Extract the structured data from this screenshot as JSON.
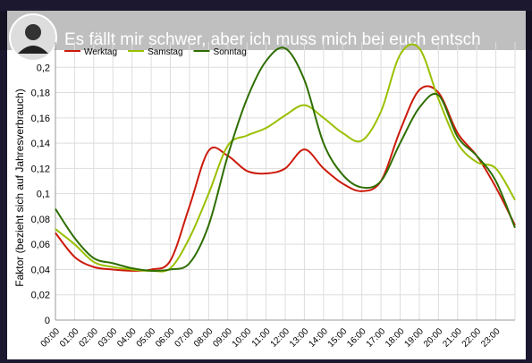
{
  "video_title": "Es fällt mir schwer, aber ich muss mich bei euch entsch",
  "chart_data": {
    "type": "line",
    "ylabel": "Faktor (bezieht sich auf Jahresverbrauch)",
    "categories": [
      "00:00",
      "01:00",
      "02:00",
      "03:00",
      "04:00",
      "05:00",
      "06:00",
      "07:00",
      "08:00",
      "09:00",
      "10:00",
      "11:00",
      "12:00",
      "13:00",
      "14:00",
      "15:00",
      "16:00",
      "17:00",
      "18:00",
      "19:00",
      "20:00",
      "21:00",
      "22:00",
      "23:00",
      null
    ],
    "series": [
      {
        "name": "Werktag",
        "color": "#cc1a0a",
        "values": [
          0.069,
          0.05,
          0.042,
          0.04,
          0.039,
          0.04,
          0.047,
          0.09,
          0.134,
          0.13,
          0.118,
          0.116,
          0.12,
          0.135,
          0.12,
          0.108,
          0.102,
          0.11,
          0.15,
          0.182,
          0.18,
          0.148,
          0.13,
          0.105,
          0.075
        ]
      },
      {
        "name": "Samstag",
        "color": "#9ac000",
        "values": [
          0.072,
          0.06,
          0.046,
          0.042,
          0.04,
          0.039,
          0.041,
          0.065,
          0.1,
          0.138,
          0.146,
          0.152,
          0.162,
          0.17,
          0.16,
          0.148,
          0.142,
          0.165,
          0.21,
          0.215,
          0.175,
          0.14,
          0.125,
          0.12,
          0.095
        ]
      },
      {
        "name": "Sonntag",
        "color": "#2e6e00",
        "values": [
          0.088,
          0.065,
          0.049,
          0.045,
          0.041,
          0.039,
          0.04,
          0.045,
          0.075,
          0.13,
          0.175,
          0.205,
          0.215,
          0.19,
          0.14,
          0.115,
          0.105,
          0.11,
          0.14,
          0.168,
          0.178,
          0.145,
          0.13,
          0.11,
          0.073
        ]
      }
    ],
    "ylim": [
      0,
      0.22
    ],
    "yticks": [
      0,
      {
        "value": 0.02,
        "label": "0,02"
      },
      {
        "value": 0.04,
        "label": "0,04"
      },
      {
        "value": 0.06,
        "label": "0,06"
      },
      {
        "value": 0.08,
        "label": "0,08"
      },
      {
        "value": 0.1,
        "label": "0,1"
      },
      {
        "value": 0.12,
        "label": "0,12"
      },
      {
        "value": 0.14,
        "label": "0,14"
      },
      {
        "value": 0.16,
        "label": "0,16"
      },
      {
        "value": 0.18,
        "label": "0,18"
      },
      {
        "value": 0.2,
        "label": "0,2"
      }
    ],
    "grid": true,
    "legend": "top-left"
  }
}
